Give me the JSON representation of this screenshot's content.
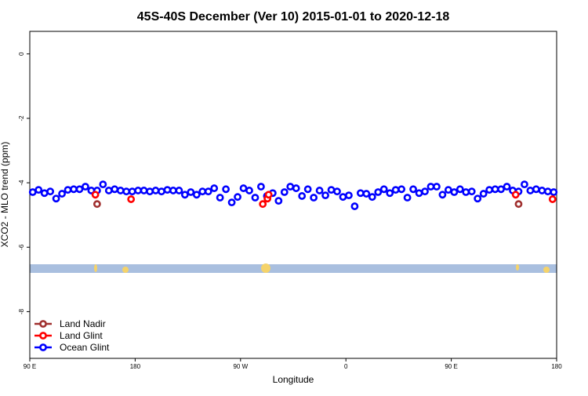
{
  "chart_data": {
    "type": "scatter",
    "title": "45S-40S December (Ver 10)   2015-01-01 to 2020-12-18",
    "xlabel": "Longitude",
    "ylabel": "XCO2 - MLO trend (ppm)",
    "xlim": [
      90,
      540
    ],
    "ylim": [
      -9.45,
      0.7
    ],
    "xticks": [
      {
        "value": 90,
        "label": "90 E"
      },
      {
        "value": 180,
        "label": "180"
      },
      {
        "value": 270,
        "label": "90 W"
      },
      {
        "value": 360,
        "label": "0"
      },
      {
        "value": 450,
        "label": "90 E"
      },
      {
        "value": 540,
        "label": "180"
      }
    ],
    "yticks": [
      0,
      -2,
      -4,
      -6,
      -8
    ],
    "legend": "bottomleft",
    "series": [
      {
        "name": "Land Nadir",
        "color": "#a0302f",
        "x": [
          147.5,
          507.5
        ],
        "values": [
          -4.66,
          -4.66
        ]
      },
      {
        "name": "Land Glint",
        "color": "#ff0000",
        "x": [
          146,
          176.5,
          289,
          293,
          294,
          505,
          536.5
        ],
        "values": [
          -4.37,
          -4.51,
          -4.66,
          -4.49,
          -4.37,
          -4.37,
          -4.51
        ]
      },
      {
        "name": "Ocean Glint",
        "color": "#0000ff",
        "x": [
          92.5,
          97.5,
          102.5,
          107.5,
          112.5,
          117.5,
          122.5,
          127.5,
          132.5,
          137.5,
          142.5,
          147.5,
          152.5,
          157.5,
          162.5,
          167.5,
          172.5,
          177.5,
          182.5,
          187.5,
          192.5,
          197.5,
          202.5,
          207.5,
          212.5,
          217.5,
          222.5,
          227.5,
          232.5,
          237.5,
          242.5,
          247.5,
          252.5,
          257.5,
          262.5,
          267.5,
          272.5,
          277.5,
          282.5,
          287.5,
          292.5,
          297.5,
          302.5,
          307.5,
          312.5,
          317.5,
          322.5,
          327.5,
          332.5,
          337.5,
          342.5,
          347.5,
          352.5,
          357.5,
          362.5,
          367.5,
          372.5,
          377.5,
          382.5,
          387.5,
          392.5,
          397.5,
          402.5,
          407.5,
          412.5,
          417.5,
          422.5,
          427.5,
          432.5,
          437.5,
          442.5,
          447.5,
          452.5,
          457.5,
          462.5,
          467.5,
          472.5,
          477.5,
          482.5,
          487.5,
          492.5,
          497.5,
          502.5,
          507.5,
          512.5,
          517.5,
          522.5,
          527.5,
          532.5,
          537.5
        ],
        "values": [
          -4.29,
          -4.22,
          -4.32,
          -4.27,
          -4.49,
          -4.34,
          -4.22,
          -4.2,
          -4.2,
          -4.12,
          -4.24,
          -4.24,
          -4.05,
          -4.24,
          -4.2,
          -4.24,
          -4.27,
          -4.27,
          -4.24,
          -4.24,
          -4.27,
          -4.24,
          -4.27,
          -4.22,
          -4.24,
          -4.24,
          -4.37,
          -4.29,
          -4.37,
          -4.27,
          -4.27,
          -4.17,
          -4.46,
          -4.2,
          -4.61,
          -4.44,
          -4.17,
          -4.24,
          -4.46,
          -4.12,
          -4.41,
          -4.32,
          -4.56,
          -4.29,
          -4.12,
          -4.17,
          -4.41,
          -4.2,
          -4.46,
          -4.24,
          -4.39,
          -4.22,
          -4.27,
          -4.44,
          -4.39,
          -4.73,
          -4.32,
          -4.34,
          -4.44,
          -4.29,
          -4.2,
          -4.32,
          -4.22,
          -4.2,
          -4.46,
          -4.2,
          -4.32,
          -4.27,
          -4.12,
          -4.12,
          -4.37,
          -4.22,
          -4.29,
          -4.2,
          -4.29,
          -4.27,
          -4.49,
          -4.34,
          -4.22,
          -4.2,
          -4.2,
          -4.12,
          -4.24,
          -4.27,
          -4.05,
          -4.24,
          -4.2,
          -4.24,
          -4.27,
          -4.29
        ]
      }
    ]
  }
}
